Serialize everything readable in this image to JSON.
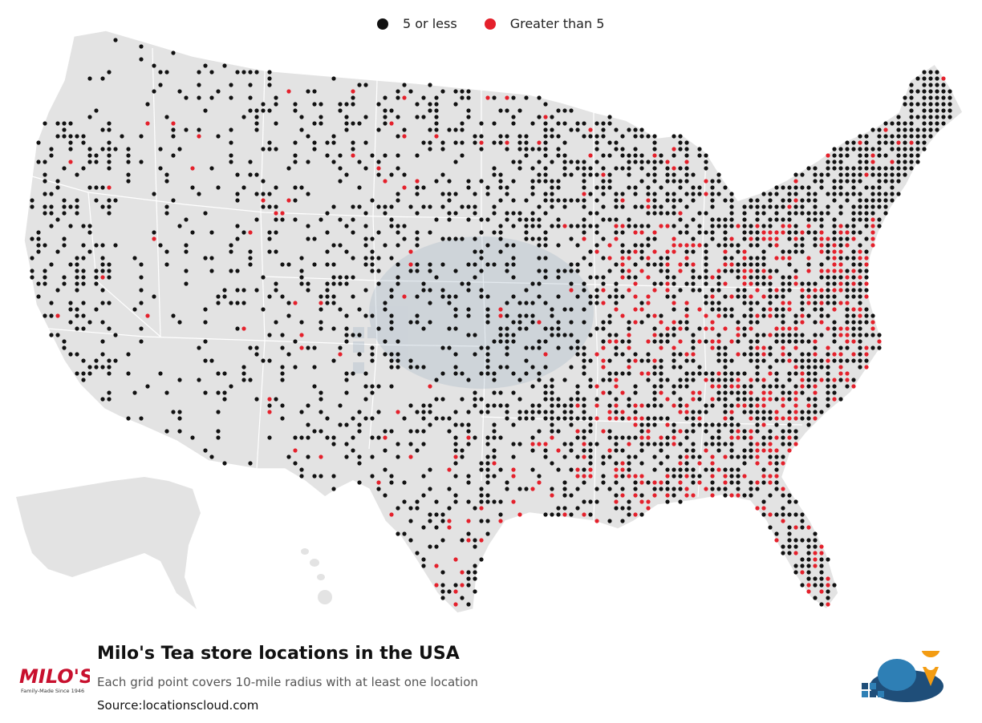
{
  "legend": {
    "items": [
      {
        "label": "5 or less",
        "color": "#111111"
      },
      {
        "label": "Greater than 5",
        "color": "#e4202b"
      }
    ]
  },
  "map": {
    "land_color": "#e3e3e3",
    "border_color": "#ffffff",
    "region": "USA"
  },
  "footer": {
    "title": "Milo's Tea store locations in the USA",
    "subtitle": "Each grid point covers 10-mile radius with at least one location",
    "source": "Source:locationscloud.com"
  },
  "logos": {
    "brand_main": "MILO'S",
    "brand_tagline": "Family-Made Since 1946",
    "brand_color": "#c8102e",
    "locationscloud_colors": [
      "#1f4e79",
      "#2e7fb5",
      "#f39c12"
    ]
  }
}
